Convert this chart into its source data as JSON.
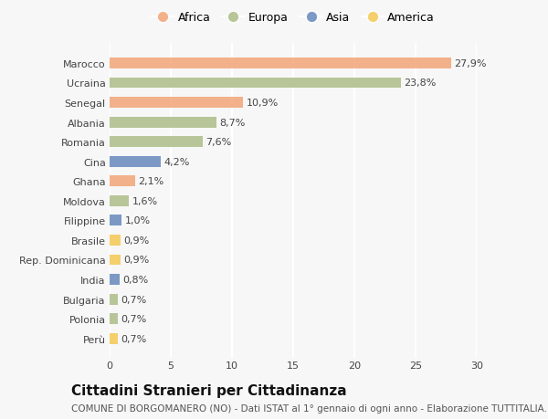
{
  "countries": [
    "Marocco",
    "Ucraina",
    "Senegal",
    "Albania",
    "Romania",
    "Cina",
    "Ghana",
    "Moldova",
    "Filippine",
    "Brasile",
    "Rep. Dominicana",
    "India",
    "Bulgaria",
    "Polonia",
    "Perù"
  ],
  "values": [
    27.9,
    23.8,
    10.9,
    8.7,
    7.6,
    4.2,
    2.1,
    1.6,
    1.0,
    0.9,
    0.9,
    0.8,
    0.7,
    0.7,
    0.7
  ],
  "labels": [
    "27,9%",
    "23,8%",
    "10,9%",
    "8,7%",
    "7,6%",
    "4,2%",
    "2,1%",
    "1,6%",
    "1,0%",
    "0,9%",
    "0,9%",
    "0,8%",
    "0,7%",
    "0,7%",
    "0,7%"
  ],
  "continents": [
    "Africa",
    "Europa",
    "Africa",
    "Europa",
    "Europa",
    "Asia",
    "Africa",
    "Europa",
    "Asia",
    "America",
    "America",
    "Asia",
    "Europa",
    "Europa",
    "America"
  ],
  "continent_colors": {
    "Africa": "#F2AA7E",
    "Europa": "#B0C08E",
    "Asia": "#6E8FBF",
    "America": "#F5CB5C"
  },
  "background_color": "#f7f7f7",
  "title": "Cittadini Stranieri per Cittadinanza",
  "subtitle": "COMUNE DI BORGOMANERO (NO) - Dati ISTAT al 1° gennaio di ogni anno - Elaborazione TUTTITALIA.IT",
  "xlim": [
    0,
    30
  ],
  "xticks": [
    0,
    5,
    10,
    15,
    20,
    25,
    30
  ],
  "bar_height": 0.55,
  "title_fontsize": 11,
  "subtitle_fontsize": 7.5,
  "label_fontsize": 8,
  "tick_fontsize": 8,
  "legend_fontsize": 9
}
